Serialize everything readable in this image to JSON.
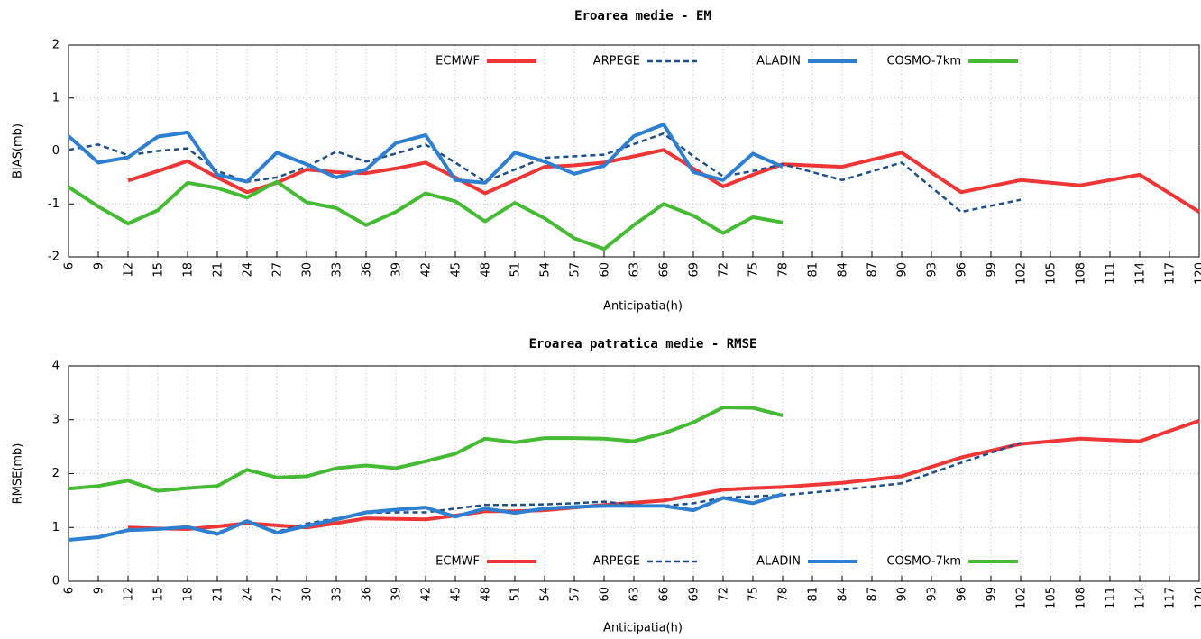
{
  "chart_data": [
    {
      "type": "line",
      "title": "Eroarea medie - EM",
      "x_label": "Anticipatia(h)",
      "y_label": "BIAS(mb)",
      "x": [
        6,
        9,
        12,
        15,
        18,
        21,
        24,
        27,
        30,
        33,
        36,
        39,
        42,
        45,
        48,
        51,
        54,
        57,
        60,
        63,
        66,
        69,
        72,
        75,
        78,
        84,
        90,
        96,
        102,
        108,
        114,
        120
      ],
      "xlim": [
        6,
        120
      ],
      "xticks": [
        6,
        9,
        12,
        15,
        18,
        21,
        24,
        27,
        30,
        33,
        36,
        39,
        42,
        45,
        48,
        51,
        54,
        57,
        60,
        63,
        66,
        69,
        72,
        75,
        78,
        81,
        84,
        87,
        90,
        93,
        96,
        99,
        102,
        105,
        108,
        111,
        114,
        117,
        120
      ],
      "ylim": [
        -2,
        2
      ],
      "yticks": [
        -2,
        -1,
        0,
        1,
        2
      ],
      "grid": true,
      "zero_line": true,
      "legend": "top",
      "series": [
        {
          "name": "ECMWF",
          "color": "#ee3636",
          "dash": false,
          "values": [
            null,
            null,
            -0.56,
            -0.38,
            -0.19,
            -0.5,
            -0.78,
            -0.6,
            -0.35,
            -0.4,
            -0.42,
            -0.33,
            -0.22,
            -0.5,
            -0.8,
            -0.55,
            -0.3,
            -0.27,
            -0.22,
            -0.1,
            0.02,
            -0.33,
            -0.67,
            -0.45,
            -0.25,
            -0.3,
            -0.03,
            -0.78,
            -0.55,
            -0.65,
            -0.45,
            -1.15
          ]
        },
        {
          "name": "ARPEGE",
          "color": "#1f4e8c",
          "dash": true,
          "values": [
            0.02,
            0.12,
            -0.08,
            0.0,
            0.05,
            -0.38,
            -0.58,
            -0.5,
            -0.3,
            -0.01,
            -0.2,
            -0.05,
            0.12,
            -0.22,
            -0.58,
            -0.35,
            -0.13,
            -0.1,
            -0.07,
            0.13,
            0.33,
            -0.1,
            -0.48,
            -0.38,
            -0.25,
            -0.55,
            -0.22,
            -1.15,
            -0.92,
            null,
            null,
            null
          ]
        },
        {
          "name": "ALADIN",
          "color": "#2f7fd0",
          "dash": false,
          "values": [
            0.28,
            -0.22,
            -0.12,
            0.27,
            0.35,
            -0.45,
            -0.58,
            -0.03,
            -0.25,
            -0.5,
            -0.35,
            0.15,
            0.3,
            -0.55,
            -0.6,
            -0.03,
            -0.2,
            -0.43,
            -0.28,
            0.28,
            0.5,
            -0.4,
            -0.55,
            -0.05,
            -0.3,
            null,
            null,
            null,
            null,
            null,
            null,
            null
          ]
        },
        {
          "name": "COSMO-7km",
          "color": "#44bb33",
          "dash": false,
          "values": [
            -0.68,
            -1.05,
            -1.37,
            -1.12,
            -0.6,
            -0.7,
            -0.88,
            -0.58,
            -0.97,
            -1.08,
            -1.4,
            -1.15,
            -0.8,
            -0.95,
            -1.33,
            -0.98,
            -1.27,
            -1.65,
            -1.85,
            -1.4,
            -1.0,
            -1.22,
            -1.55,
            -1.25,
            -1.35,
            null,
            null,
            null,
            null,
            null,
            null,
            null
          ]
        }
      ]
    },
    {
      "type": "line",
      "title": "Eroarea patratica medie - RMSE",
      "x_label": "Anticipatia(h)",
      "y_label": "RMSE(mb)",
      "x": [
        6,
        9,
        12,
        15,
        18,
        21,
        24,
        27,
        30,
        33,
        36,
        39,
        42,
        45,
        48,
        51,
        54,
        57,
        60,
        63,
        66,
        69,
        72,
        75,
        78,
        84,
        90,
        96,
        102,
        108,
        114,
        120
      ],
      "xlim": [
        6,
        120
      ],
      "xticks": [
        6,
        9,
        12,
        15,
        18,
        21,
        24,
        27,
        30,
        33,
        36,
        39,
        42,
        45,
        48,
        51,
        54,
        57,
        60,
        63,
        66,
        69,
        72,
        75,
        78,
        81,
        84,
        87,
        90,
        93,
        96,
        99,
        102,
        105,
        108,
        111,
        114,
        117,
        120
      ],
      "ylim": [
        0,
        4
      ],
      "yticks": [
        0,
        1,
        2,
        3,
        4
      ],
      "grid": true,
      "zero_line": false,
      "legend": "bottom",
      "series": [
        {
          "name": "ECMWF",
          "color": "#ee3636",
          "dash": false,
          "values": [
            null,
            null,
            1.0,
            0.98,
            0.97,
            1.02,
            1.08,
            1.04,
            1.0,
            1.08,
            1.17,
            1.16,
            1.15,
            1.22,
            1.3,
            1.3,
            1.32,
            1.37,
            1.42,
            1.46,
            1.5,
            1.6,
            1.7,
            1.73,
            1.75,
            1.83,
            1.95,
            2.3,
            2.55,
            2.65,
            2.6,
            2.98
          ]
        },
        {
          "name": "ARPEGE",
          "color": "#1f4e8c",
          "dash": true,
          "values": [
            0.77,
            0.82,
            0.95,
            0.98,
            1.0,
            0.9,
            1.12,
            0.92,
            1.07,
            1.17,
            1.27,
            1.28,
            1.28,
            1.35,
            1.42,
            1.42,
            1.43,
            1.45,
            1.48,
            1.42,
            1.4,
            1.45,
            1.55,
            1.58,
            1.6,
            1.7,
            1.82,
            2.2,
            2.57,
            null,
            null,
            null
          ]
        },
        {
          "name": "ALADIN",
          "color": "#2f7fd0",
          "dash": false,
          "values": [
            0.77,
            0.82,
            0.95,
            0.97,
            1.01,
            0.88,
            1.12,
            0.9,
            1.03,
            1.15,
            1.28,
            1.33,
            1.37,
            1.2,
            1.35,
            1.27,
            1.35,
            1.38,
            1.4,
            1.4,
            1.4,
            1.32,
            1.55,
            1.45,
            1.62,
            null,
            null,
            null,
            null,
            null,
            null,
            null
          ]
        },
        {
          "name": "COSMO-7km",
          "color": "#44bb33",
          "dash": false,
          "values": [
            1.72,
            1.77,
            1.87,
            1.68,
            1.73,
            1.77,
            2.07,
            1.93,
            1.95,
            2.1,
            2.15,
            2.1,
            2.23,
            2.37,
            2.65,
            2.58,
            2.66,
            2.66,
            2.65,
            2.6,
            2.75,
            2.95,
            3.23,
            3.22,
            3.08,
            null,
            null,
            null,
            null,
            null,
            null,
            null
          ]
        }
      ]
    }
  ]
}
